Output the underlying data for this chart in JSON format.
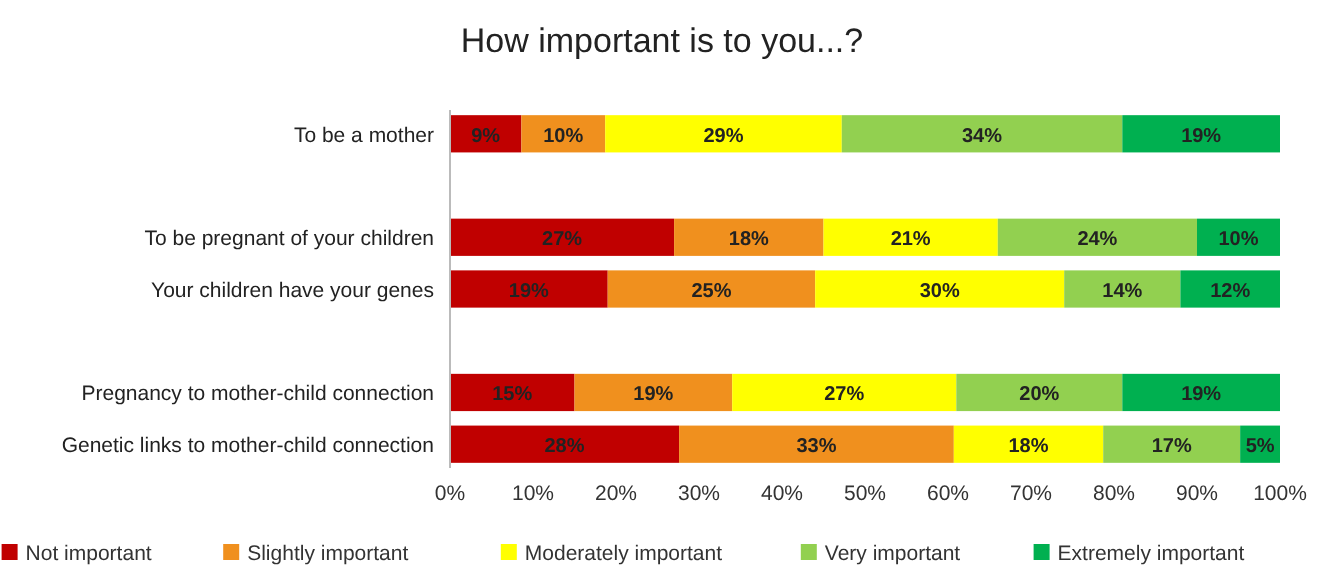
{
  "chart_data": {
    "type": "bar",
    "title": "How important is to you...?",
    "orientation": "horizontal",
    "stacked": true,
    "categories": [
      "To be a mother",
      null,
      "To be pregnant of your children",
      "Your children have your genes",
      null,
      "Pregnancy to mother-child connection",
      "Genetic links to mother-child connection"
    ],
    "series": [
      {
        "name": "Not important",
        "color": "#c00000",
        "values": [
          8.6,
          null,
          27,
          19,
          null,
          15,
          27.6
        ],
        "value_labels": [
          "9%",
          null,
          "27%",
          "19%",
          null,
          "15%",
          "28%"
        ]
      },
      {
        "name": "Slightly important",
        "color": "#f0901e",
        "values": [
          10.1,
          null,
          18,
          25,
          null,
          19,
          33.1
        ],
        "value_labels": [
          "10%",
          null,
          "18%",
          "25%",
          null,
          "19%",
          "33%"
        ]
      },
      {
        "name": "Moderately important",
        "color": "#ffff00",
        "values": [
          28.5,
          null,
          21,
          30,
          null,
          27,
          18
        ],
        "value_labels": [
          "29%",
          null,
          "21%",
          "30%",
          null,
          "27%",
          "18%"
        ]
      },
      {
        "name": "Very important",
        "color": "#92d050",
        "values": [
          33.8,
          null,
          24,
          14,
          null,
          20,
          16.5
        ],
        "value_labels": [
          "34%",
          null,
          "24%",
          "14%",
          null,
          "20%",
          "17%"
        ]
      },
      {
        "name": "Extremely important",
        "color": "#00b050",
        "values": [
          19,
          null,
          10,
          12,
          null,
          19,
          4.8
        ],
        "value_labels": [
          "19%",
          null,
          "10%",
          "12%",
          null,
          "19%",
          "5%"
        ]
      }
    ],
    "xlim": [
      0,
      100
    ],
    "xticks": [
      {
        "value": 0,
        "label": "0%"
      },
      {
        "value": 10,
        "label": "10%"
      },
      {
        "value": 20,
        "label": "20%"
      },
      {
        "value": 30,
        "label": "30%"
      },
      {
        "value": 40,
        "label": "40%"
      },
      {
        "value": 50,
        "label": "50%"
      },
      {
        "value": 60,
        "label": "60%"
      },
      {
        "value": 70,
        "label": "70%"
      },
      {
        "value": 80,
        "label": "80%"
      },
      {
        "value": 90,
        "label": "90%"
      },
      {
        "value": 100,
        "label": "100%"
      }
    ],
    "legend": "bottom"
  }
}
